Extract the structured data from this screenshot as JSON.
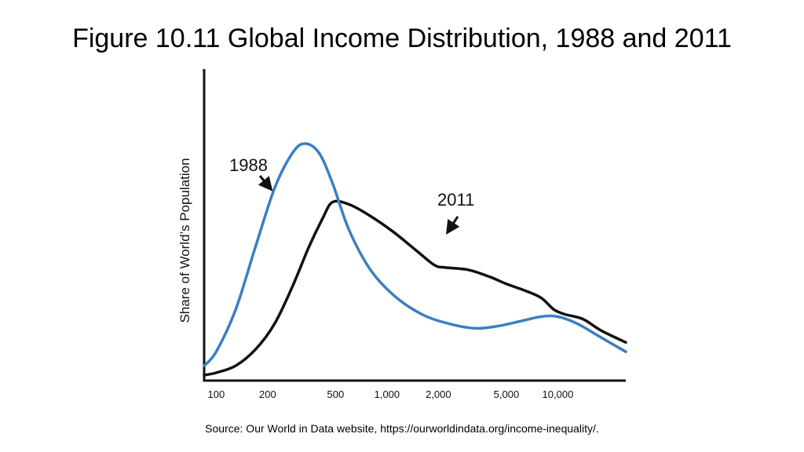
{
  "slide": {
    "title": "Figure 10.11 Global Income Distribution, 1988 and 2011",
    "source": "Source: Our World in Data website, https://ourworldindata.org/income-inequality/."
  },
  "chart_data": {
    "type": "line",
    "title": "Figure 10.11 Global Income Distribution, 1988 and 2011",
    "xlabel": "",
    "ylabel": "Share of World’s Population",
    "x_scale": "log",
    "x_ticks": [
      100,
      200,
      500,
      1000,
      2000,
      5000,
      10000
    ],
    "x_tick_labels": [
      "100",
      "200",
      "500",
      "1,000",
      "2,000",
      "5,000",
      "10,000"
    ],
    "xlim": [
      85,
      25000
    ],
    "y_ticks_shown": false,
    "grid": false,
    "legend": "none (series labeled directly with arrows)",
    "colors": {
      "1988": "#3a7fc1",
      "2011": "#111111"
    },
    "series": [
      {
        "name": "1988",
        "x": [
          85,
          100,
          130,
          170,
          220,
          280,
          330,
          400,
          480,
          600,
          800,
          1100,
          1600,
          2300,
          3300,
          4500,
          6000,
          8000,
          10000,
          13000,
          18000,
          25000
        ],
        "values": [
          0.04,
          0.1,
          0.28,
          0.55,
          0.8,
          0.95,
          0.99,
          0.95,
          0.82,
          0.62,
          0.45,
          0.34,
          0.26,
          0.22,
          0.2,
          0.21,
          0.23,
          0.25,
          0.25,
          0.22,
          0.16,
          0.1
        ]
      },
      {
        "name": "2011",
        "x": [
          85,
          100,
          130,
          170,
          220,
          280,
          350,
          420,
          480,
          600,
          800,
          1100,
          1500,
          1900,
          2200,
          3000,
          4000,
          5000,
          6500,
          8000,
          9500,
          11000,
          14000,
          18000,
          25000
        ],
        "values": [
          0.0,
          0.01,
          0.04,
          0.11,
          0.22,
          0.38,
          0.55,
          0.67,
          0.74,
          0.73,
          0.68,
          0.61,
          0.53,
          0.47,
          0.46,
          0.45,
          0.42,
          0.39,
          0.36,
          0.33,
          0.28,
          0.26,
          0.24,
          0.19,
          0.14
        ]
      }
    ],
    "annotations": [
      {
        "text": "1988",
        "series": "1988",
        "arrow_to": {
          "x": 185,
          "y": 0.66
        }
      },
      {
        "text": "2011",
        "series": "2011",
        "arrow_to": {
          "x": 2300,
          "y": 0.46
        }
      }
    ]
  }
}
